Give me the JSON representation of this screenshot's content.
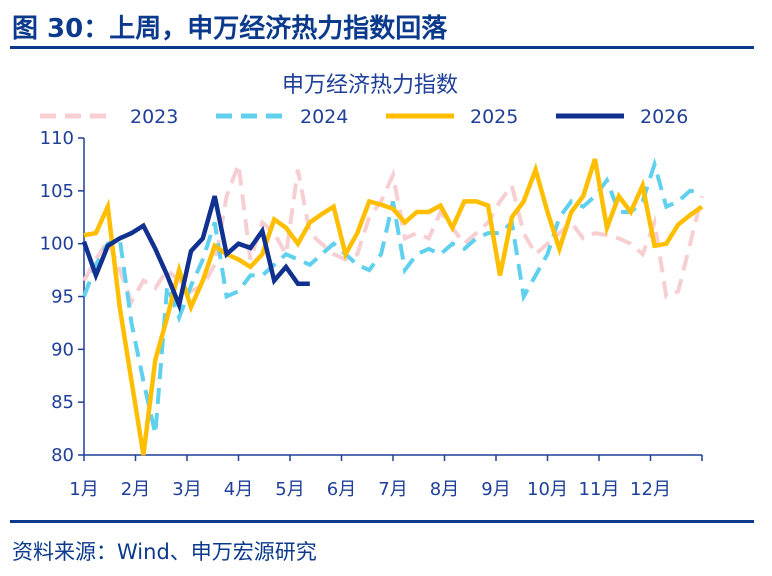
{
  "figure": {
    "title": "图 30：上周，申万经济热力指数回落",
    "source": "资料来源：Wind、申万宏源研究"
  },
  "chart_data": {
    "type": "line",
    "title": "申万经济热力指数",
    "xlabel": "",
    "ylabel": "",
    "x_tick_labels": [
      "1月",
      "2月",
      "3月",
      "4月",
      "5月",
      "6月",
      "7月",
      "8月",
      "9月",
      "10月",
      "11月",
      "12月"
    ],
    "x_range_weeks": [
      1,
      53
    ],
    "ylim": [
      80,
      110
    ],
    "y_ticks": [
      80,
      85,
      90,
      95,
      100,
      105,
      110
    ],
    "grid": false,
    "legend": "top",
    "series": [
      {
        "name": "2023",
        "color": "#f7cfd2",
        "style": "dashed",
        "x": [
          1,
          2,
          3,
          4,
          5,
          6,
          7,
          8,
          9,
          10,
          11,
          12,
          13,
          14,
          15,
          16,
          17,
          18,
          19,
          20,
          21,
          22,
          23,
          24,
          25,
          26,
          27,
          28,
          29,
          30,
          31,
          32,
          33,
          34,
          35,
          36,
          37,
          38,
          39,
          40,
          41,
          42,
          43,
          44,
          45,
          46,
          47,
          48,
          49,
          50,
          51,
          52,
          53
        ],
        "y": [
          96.5,
          98.5,
          100.3,
          97.5,
          94.5,
          96.5,
          95.8,
          97.5,
          96.5,
          95.5,
          96,
          98,
          104.5,
          107.5,
          98.5,
          102,
          101,
          99,
          107,
          101,
          100,
          99,
          98.5,
          99,
          102.5,
          104,
          106.5,
          100.5,
          101,
          100.5,
          103,
          101.5,
          100,
          101,
          102,
          104,
          105.5,
          101,
          99,
          100,
          101,
          102,
          100.5,
          101,
          100.8,
          100.5,
          100,
          99,
          102,
          95,
          95.5,
          100,
          104.5
        ]
      },
      {
        "name": "2024",
        "color": "#5fd0ee",
        "style": "dashed",
        "x": [
          1,
          2,
          3,
          4,
          5,
          6,
          7,
          8,
          9,
          10,
          11,
          12,
          13,
          14,
          15,
          16,
          17,
          18,
          19,
          20,
          21,
          22,
          23,
          24,
          25,
          26,
          27,
          28,
          29,
          30,
          31,
          32,
          33,
          34,
          35,
          36,
          37,
          38,
          39,
          40,
          41,
          42,
          43,
          44,
          45,
          46,
          47,
          48,
          49,
          50,
          51,
          52,
          53
        ],
        "y": [
          95,
          98,
          100,
          100.5,
          92.5,
          87,
          82,
          96,
          93,
          96,
          98.5,
          102,
          95,
          95.5,
          97,
          97,
          98,
          99,
          98.5,
          98,
          99,
          100,
          99,
          98,
          97.5,
          99,
          104,
          97.5,
          99,
          99.5,
          99,
          100,
          99.5,
          100.5,
          101,
          101,
          102,
          95,
          97,
          99,
          102.5,
          104,
          103.5,
          104.5,
          106,
          103,
          103,
          104,
          107.5,
          103.5,
          104,
          105,
          104.8
        ]
      },
      {
        "name": "2025",
        "color": "#ffbf00",
        "style": "solid",
        "x": [
          1,
          2,
          3,
          4,
          5,
          6,
          7,
          8,
          9,
          10,
          11,
          12,
          13,
          14,
          15,
          16,
          17,
          18,
          19,
          20,
          21,
          22,
          23,
          24,
          25,
          26,
          27,
          28,
          29,
          30,
          31,
          32,
          33,
          34,
          35,
          36,
          37,
          38,
          39,
          40,
          41,
          42,
          43,
          44,
          45,
          46,
          47,
          48,
          49,
          50,
          51,
          52,
          53
        ],
        "y": [
          100.8,
          101,
          103.5,
          94,
          87,
          80,
          89,
          93,
          97.5,
          94,
          96.5,
          99.8,
          99,
          98.5,
          97.8,
          99,
          102.3,
          101.5,
          100,
          102,
          102.8,
          103.5,
          99,
          101,
          104,
          103.7,
          103.3,
          102,
          103,
          103,
          103.6,
          101.5,
          104,
          104,
          103.6,
          97,
          102.5,
          104,
          107,
          103,
          99.5,
          103,
          104.5,
          108,
          101.5,
          104.5,
          103,
          105.5,
          99.8,
          100,
          101.8,
          102.7,
          103.5
        ]
      },
      {
        "name": "2026",
        "color": "#10318f",
        "style": "solid",
        "x": [
          1,
          2,
          3,
          4,
          5,
          6,
          7,
          8,
          9,
          10,
          11,
          12,
          13,
          14,
          15,
          16,
          17,
          18,
          19,
          20
        ],
        "y": [
          100.2,
          97,
          99.8,
          100.5,
          101,
          101.7,
          99.5,
          97,
          94.2,
          99.3,
          100.5,
          104.5,
          99,
          100,
          99.6,
          101.2,
          96.5,
          97.8,
          96.2,
          96.2
        ]
      }
    ]
  }
}
